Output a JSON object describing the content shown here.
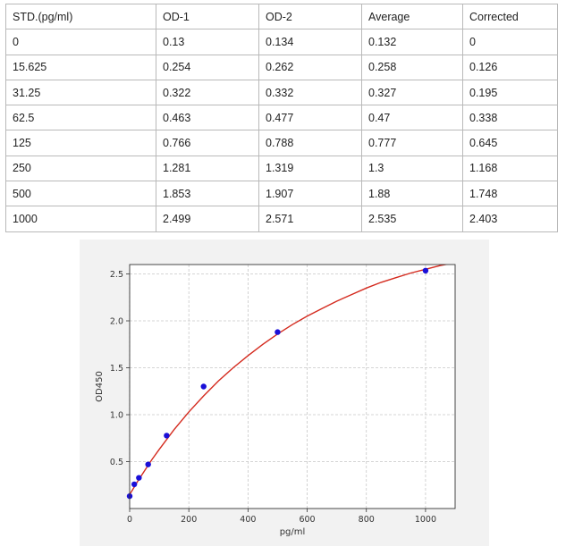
{
  "table": {
    "headers": [
      "STD.(pg/ml)",
      "OD-1",
      "OD-2",
      "Average",
      "Corrected"
    ],
    "rows": [
      [
        "0",
        "0.13",
        "0.134",
        "0.132",
        "0"
      ],
      [
        "15.625",
        "0.254",
        "0.262",
        "0.258",
        "0.126"
      ],
      [
        "31.25",
        "0.322",
        "0.332",
        "0.327",
        "0.195"
      ],
      [
        "62.5",
        "0.463",
        "0.477",
        "0.47",
        "0.338"
      ],
      [
        "125",
        "0.766",
        "0.788",
        "0.777",
        "0.645"
      ],
      [
        "250",
        "1.281",
        "1.319",
        "1.3",
        "1.168"
      ],
      [
        "500",
        "1.853",
        "1.907",
        "1.88",
        "1.748"
      ],
      [
        "1000",
        "2.499",
        "2.571",
        "2.535",
        "2.403"
      ]
    ]
  },
  "chart_data": {
    "type": "scatter",
    "title": "",
    "xlabel": "pg/ml",
    "ylabel": "OD450",
    "xlim": [
      0,
      1100
    ],
    "ylim": [
      0,
      2.6
    ],
    "xticks": [
      "0",
      "200",
      "400",
      "600",
      "800",
      "1000"
    ],
    "xtick_values": [
      0,
      200,
      400,
      600,
      800,
      1000
    ],
    "yticks": [
      "0.5",
      "1.0",
      "1.5",
      "2.0",
      "2.5"
    ],
    "ytick_values": [
      0.5,
      1.0,
      1.5,
      2.0,
      2.5
    ],
    "grid": true,
    "points": {
      "x": [
        0,
        15.625,
        31.25,
        62.5,
        125,
        250,
        500,
        1000
      ],
      "y": [
        0.132,
        0.258,
        0.327,
        0.47,
        0.777,
        1.3,
        1.88,
        2.535
      ],
      "color": "#1a0fd8"
    },
    "fit_curve": {
      "color": "#d42a1e",
      "x": [
        0,
        10,
        25,
        50,
        75,
        100,
        150,
        200,
        250,
        300,
        350,
        400,
        450,
        500,
        550,
        600,
        650,
        700,
        750,
        800,
        850,
        900,
        950,
        1000,
        1050,
        1100
      ],
      "y": [
        0.15,
        0.2,
        0.28,
        0.4,
        0.52,
        0.63,
        0.84,
        1.03,
        1.2,
        1.36,
        1.5,
        1.63,
        1.75,
        1.86,
        1.96,
        2.05,
        2.13,
        2.21,
        2.28,
        2.35,
        2.41,
        2.46,
        2.51,
        2.55,
        2.59,
        2.62
      ]
    }
  }
}
